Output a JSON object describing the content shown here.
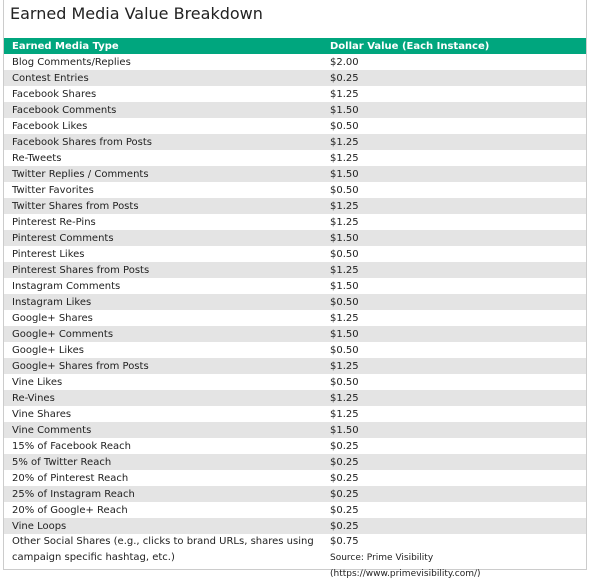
{
  "header": {
    "title": "Earned Media Value Breakdown"
  },
  "table": {
    "columns": [
      "Earned Media Type",
      "Dollar Value (Each Instance)"
    ],
    "rows": [
      [
        "Blog Comments/Replies",
        "$2.00"
      ],
      [
        "Contest Entries",
        "$0.25"
      ],
      [
        "Facebook Shares",
        "$1.25"
      ],
      [
        "Facebook Comments",
        "$1.50"
      ],
      [
        "Facebook Likes",
        "$0.50"
      ],
      [
        "Facebook Shares from Posts",
        "$1.25"
      ],
      [
        "Re-Tweets",
        "$1.25"
      ],
      [
        "Twitter Replies / Comments",
        "$1.50"
      ],
      [
        "Twitter Favorites",
        "$0.50"
      ],
      [
        "Twitter Shares from Posts",
        "$1.25"
      ],
      [
        "Pinterest Re-Pins",
        "$1.25"
      ],
      [
        "Pinterest Comments",
        "$1.50"
      ],
      [
        "Pinterest Likes",
        "$0.50"
      ],
      [
        "Pinterest Shares from Posts",
        "$1.25"
      ],
      [
        "Instagram Comments",
        "$1.50"
      ],
      [
        "Instagram Likes",
        "$0.50"
      ],
      [
        "Google+ Shares",
        "$1.25"
      ],
      [
        "Google+ Comments",
        "$1.50"
      ],
      [
        "Google+ Likes",
        "$0.50"
      ],
      [
        "Google+ Shares from Posts",
        "$1.25"
      ],
      [
        "Vine Likes",
        "$0.50"
      ],
      [
        "Re-Vines",
        "$1.25"
      ],
      [
        "Vine Shares",
        "$1.25"
      ],
      [
        "Vine Comments",
        "$1.50"
      ],
      [
        "15% of Facebook Reach",
        "$0.25"
      ],
      [
        "5% of Twitter Reach",
        "$0.25"
      ],
      [
        "20% of Pinterest Reach",
        "$0.25"
      ],
      [
        "25% of Instagram Reach",
        "$0.25"
      ],
      [
        "20% of Google+ Reach",
        "$0.25"
      ],
      [
        "Vine Loops",
        "$0.25"
      ],
      [
        "Other Social Shares (e.g., clicks to brand URLs, shares using campaign specific hashtag, etc.)",
        "$0.75"
      ]
    ]
  },
  "source": "Source: Prime Visibility (https://www.primevisibility.com/)"
}
